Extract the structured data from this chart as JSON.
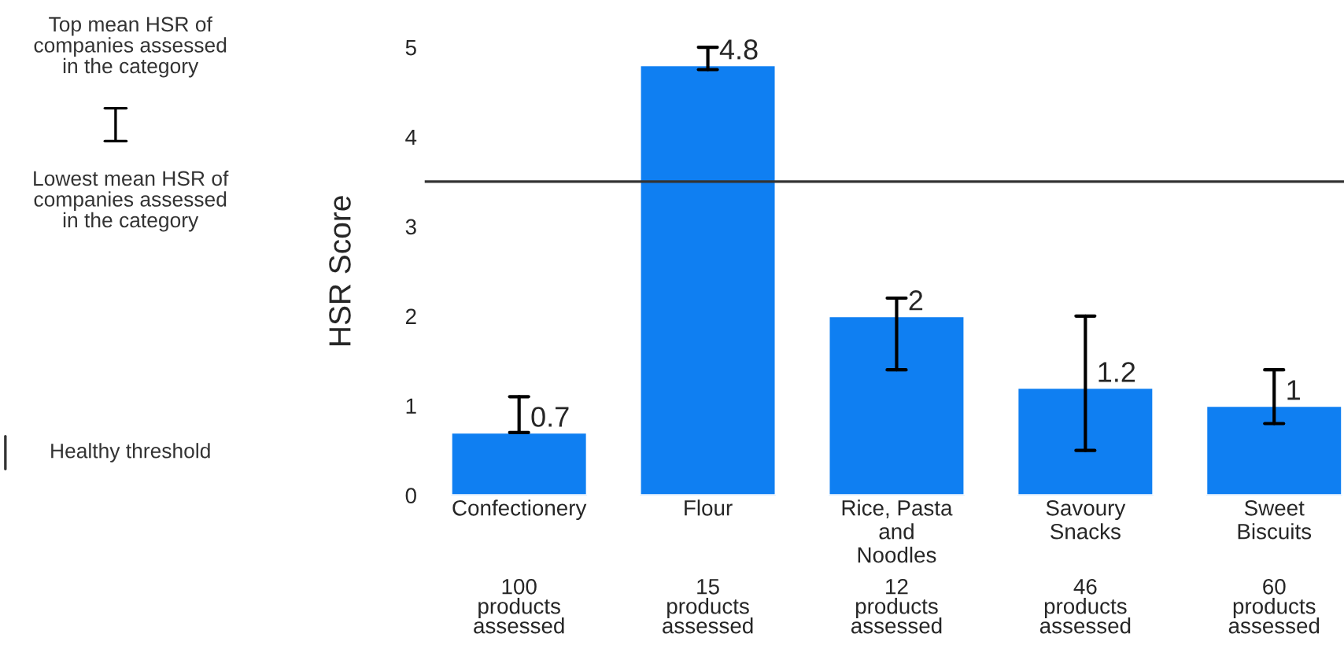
{
  "chart_data": {
    "type": "bar",
    "ylabel": "HSR Score",
    "categories": [
      "Confectionery",
      "Flour",
      "Rice, Pasta\nand\nNoodles",
      "Savoury\nSnacks",
      "Sweet\nBiscuits"
    ],
    "values": [
      0.7,
      4.8,
      2,
      1.2,
      1
    ],
    "value_labels": [
      "0.7",
      "4.8",
      "2",
      "1.2",
      "1"
    ],
    "errors": [
      [
        0.7,
        1.1
      ],
      [
        4.75,
        5.0
      ],
      [
        1.4,
        2.2
      ],
      [
        0.5,
        2.0
      ],
      [
        0.8,
        1.4
      ]
    ],
    "color": "#0f7ff2",
    "ylim": [
      0,
      5
    ],
    "yticks": [
      0,
      1,
      2,
      3,
      4,
      5
    ],
    "grid": false,
    "ref_lines": [
      {
        "axis": "y",
        "value": 3.5,
        "label": "Healthy threshold",
        "color": "#333333"
      }
    ],
    "annotations": [
      "Top mean HSR of\ncompanies assessed\nin the category",
      "Lowest mean HSR of\ncompanies assessed\nin the category",
      "100\nproducts\nassessed",
      "15\nproducts\nassessed",
      "12\nproducts\nassessed",
      "46\nproducts\nassessed",
      "60\nproducts\nassessed"
    ]
  }
}
